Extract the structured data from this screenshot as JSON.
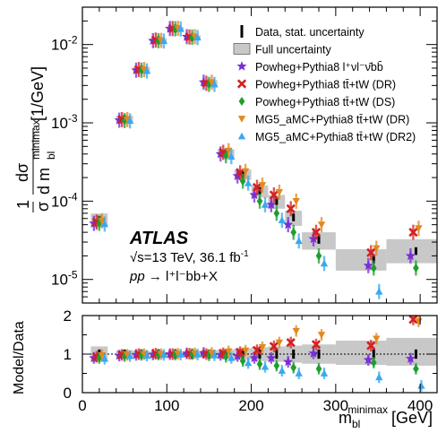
{
  "chart_data": [
    {
      "type": "scatter",
      "xlabel_main": "m",
      "xlabel_sub": "bl",
      "xlabel_sup": "minimax",
      "xlabel_unit": "[GeV]",
      "ylabel": "1/σ dσ/d m_bl^minimax [1/GeV]",
      "ylabel_frac_num": "1",
      "ylabel_frac_den": "σ",
      "ylabel_num": "dσ",
      "ylabel_den_d": "d m",
      "ylabel_sub": "bl",
      "ylabel_sup": "minimax",
      "ylabel_unit": "[1/GeV]",
      "xlim": [
        0,
        420
      ],
      "ylim": [
        5e-06,
        0.03
      ],
      "yscale": "log",
      "xticks": [
        "0",
        "100",
        "200",
        "300",
        "400"
      ],
      "yticks": [
        "10",
        "10",
        "10",
        "10"
      ],
      "ytick_exps": [
        "-2",
        "-3",
        "-4",
        "-5"
      ],
      "legend_position": "top-right",
      "bins": [
        [
          10,
          30
        ],
        [
          40,
          60
        ],
        [
          60,
          80
        ],
        [
          80,
          100
        ],
        [
          100,
          120
        ],
        [
          120,
          140
        ],
        [
          140,
          160
        ],
        [
          160,
          180
        ],
        [
          180,
          200
        ],
        [
          200,
          220
        ],
        [
          220,
          240
        ],
        [
          240,
          260
        ],
        [
          260,
          300
        ],
        [
          300,
          360
        ],
        [
          360,
          420
        ]
      ],
      "x": [
        20,
        50,
        70,
        90,
        110,
        130,
        150,
        170,
        190,
        210,
        230,
        250,
        280,
        345,
        395
      ],
      "series": [
        {
          "name": "Data, stat. uncertainty",
          "values": [
            5.8e-05,
            0.00112,
            0.0048,
            0.0113,
            0.016,
            0.0124,
            0.0032,
            0.00041,
            0.00022,
            0.000135,
            0.0001,
            6.2e-05,
            3.2e-05,
            1.8e-05,
            2.3e-05
          ],
          "color": "#000000",
          "marker": "bar"
        },
        {
          "name": "Full uncertainty",
          "values": [
            5.8e-05,
            0.00112,
            0.0048,
            0.0113,
            0.016,
            0.0124,
            0.0032,
            0.00041,
            0.00022,
            0.000135,
            0.0001,
            6.2e-05,
            3.2e-05,
            1.8e-05,
            2.3e-05
          ],
          "color": "#c8c8c8",
          "marker": "box"
        },
        {
          "name": "Powheg+Pythia8 l⁺νl⁻ν̄bb̄",
          "values": [
            5.2e-05,
            0.00108,
            0.0047,
            0.0112,
            0.016,
            0.0126,
            0.0033,
            0.0004,
            0.00021,
            0.00012,
            9e-05,
            5e-05,
            3.3e-05,
            1.5e-05,
            2e-05
          ],
          "color": "#7a2ed6",
          "marker": "star"
        },
        {
          "name": "Powheg+Pythia8 tt̄+tW (DR)",
          "values": [
            5.4e-05,
            0.0011,
            0.0048,
            0.0114,
            0.016,
            0.0125,
            0.0032,
            0.00042,
            0.00023,
            0.00015,
            0.00012,
            8e-05,
            4e-05,
            2.2e-05,
            4e-05
          ],
          "color": "#d42020",
          "marker": "x"
        },
        {
          "name": "Powheg+Pythia8 tt̄+tW (DS)",
          "values": [
            5.2e-05,
            0.00107,
            0.0047,
            0.0112,
            0.0159,
            0.0124,
            0.0031,
            0.00038,
            0.00018,
            0.0001,
            7e-05,
            4e-05,
            2e-05,
            1.4e-05,
            1.4e-05
          ],
          "color": "#1e9e2e",
          "marker": "diamond"
        },
        {
          "name": "MG5_aMC+Pythia8 tt̄+tW (DR)",
          "values": [
            5.6e-05,
            0.0011,
            0.0048,
            0.0113,
            0.0161,
            0.0126,
            0.0033,
            0.00044,
            0.00024,
            0.00016,
            0.00013,
            0.0001,
            5e-05,
            2.5e-05,
            4.5e-05
          ],
          "color": "#e08a1e",
          "marker": "triangle-down"
        },
        {
          "name": "MG5_aMC+Pythia8 tt̄+tW (DR2)",
          "values": [
            5.1e-05,
            0.00106,
            0.0046,
            0.0111,
            0.0158,
            0.0123,
            0.0031,
            0.00037,
            0.00017,
            9e-05,
            5.7e-05,
            3.1e-05,
            1.6e-05,
            7e-06,
            4e-06
          ],
          "color": "#3aa8f0",
          "marker": "triangle-up"
        }
      ]
    },
    {
      "type": "scatter",
      "ylabel": "Model/Data",
      "xlabel_main": "m",
      "xlabel_sub": "bl",
      "xlabel_sup": "minimax",
      "xlabel_unit": "[GeV]",
      "xlim": [
        0,
        420
      ],
      "ylim": [
        0,
        2
      ],
      "xticks": [
        "0",
        "100",
        "200",
        "300",
        "400"
      ],
      "yticks": [
        "0",
        "1",
        "2"
      ],
      "reference_line": 1,
      "uncertainty_band": [
        [
          0.8,
          1.2
        ],
        [
          0.9,
          1.1
        ],
        [
          0.92,
          1.08
        ],
        [
          0.94,
          1.06
        ],
        [
          0.95,
          1.05
        ],
        [
          0.94,
          1.06
        ],
        [
          0.92,
          1.1
        ],
        [
          0.88,
          1.12
        ],
        [
          0.85,
          1.15
        ],
        [
          0.82,
          1.18
        ],
        [
          0.8,
          1.2
        ],
        [
          0.78,
          1.22
        ],
        [
          0.75,
          1.25
        ],
        [
          0.72,
          1.35
        ],
        [
          0.7,
          1.42
        ]
      ],
      "series": [
        {
          "name": "Powheg+Pythia8 l⁺νl⁻ν̄bb̄",
          "values": [
            0.9,
            0.96,
            0.98,
            0.99,
            1.0,
            1.02,
            1.03,
            0.98,
            0.95,
            0.9,
            0.9,
            0.8,
            1.02,
            0.85,
            0.88
          ]
        },
        {
          "name": "Powheg+Pythia8 tt̄+tW (DR)",
          "values": [
            0.93,
            0.98,
            1.0,
            1.01,
            1.0,
            1.01,
            1.0,
            1.02,
            1.05,
            1.1,
            1.2,
            1.3,
            1.25,
            1.22,
            1.9
          ]
        },
        {
          "name": "Powheg+Pythia8 tt̄+tW (DS)",
          "values": [
            0.9,
            0.95,
            0.98,
            0.99,
            0.99,
            1.0,
            0.97,
            0.93,
            0.82,
            0.74,
            0.7,
            0.65,
            0.62,
            0.78,
            0.62
          ]
        },
        {
          "name": "MG5_aMC+Pythia8 tt̄+tW (DR)",
          "values": [
            0.97,
            0.98,
            1.0,
            1.0,
            1.01,
            1.02,
            1.03,
            1.07,
            1.09,
            1.18,
            1.3,
            1.6,
            1.5,
            1.4,
            1.85
          ]
        },
        {
          "name": "MG5_aMC+Pythia8 tt̄+tW (DR2)",
          "values": [
            0.88,
            0.95,
            0.96,
            0.98,
            0.99,
            0.99,
            0.97,
            0.9,
            0.77,
            0.67,
            0.57,
            0.5,
            0.5,
            0.4,
            0.18
          ]
        }
      ]
    }
  ],
  "labels": {
    "experiment": "ATLAS",
    "energy_prefix": "√s=13 TeV, 36.1 fb",
    "energy_sup": "-1",
    "process_pp": "pp",
    "process_arrow": " → ",
    "process_final": "l⁺l⁻bb+X"
  },
  "legend": [
    {
      "label": "Data, stat. uncertainty",
      "marker": "bar",
      "color": "#000000"
    },
    {
      "label": "Full uncertainty",
      "marker": "box",
      "color": "#c8c8c8"
    },
    {
      "label": "Powheg+Pythia8 l⁺νl⁻ν̄bb̄",
      "marker": "star",
      "color": "#7a2ed6"
    },
    {
      "label": "Powheg+Pythia8 tt̄+tW (DR)",
      "marker": "x",
      "color": "#d42020"
    },
    {
      "label": "Powheg+Pythia8 tt̄+tW (DS)",
      "marker": "diamond",
      "color": "#1e9e2e"
    },
    {
      "label": "MG5_aMC+Pythia8 tt̄+tW (DR)",
      "marker": "triangle-down",
      "color": "#e08a1e"
    },
    {
      "label": "MG5_aMC+Pythia8 tt̄+tW (DR2)",
      "marker": "triangle-up",
      "color": "#3aa8f0"
    }
  ]
}
